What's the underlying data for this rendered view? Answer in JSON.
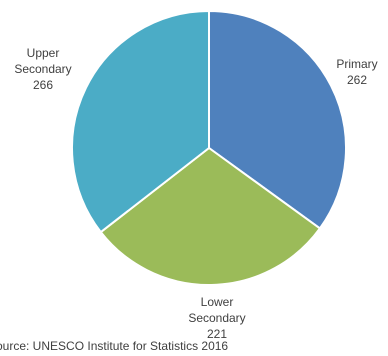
{
  "chart_data": {
    "type": "pie",
    "title": "",
    "slices": [
      {
        "label": [
          "Primary"
        ],
        "value": 262,
        "color": "#4F81BD"
      },
      {
        "label": [
          "Lower",
          "Secondary"
        ],
        "value": 221,
        "color": "#9BBB59"
      },
      {
        "label": [
          "Upper",
          "Secondary"
        ],
        "value": 266,
        "color": "#4BACC6"
      }
    ],
    "start_angle_deg": 0,
    "direction": "clockwise",
    "slice_border_color": "#FFFFFF",
    "legend": "none",
    "data_labels": "outside, category name and value"
  },
  "source_note": "ource: UNESCO Institute for Statistics 2016"
}
